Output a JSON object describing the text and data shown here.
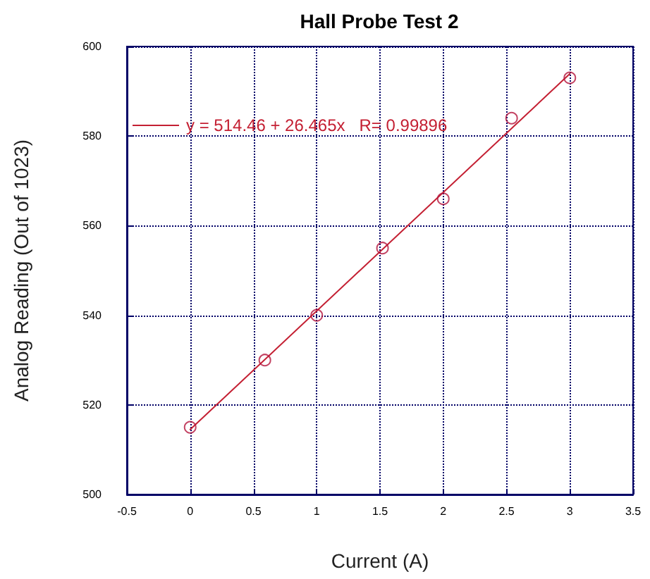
{
  "chart_data": {
    "type": "scatter",
    "title": "Hall Probe Test 2",
    "xlabel": "Current (A)",
    "ylabel": "Analog Reading (Out of 1023)",
    "xlim": [
      -0.5,
      3.5
    ],
    "xticks": [
      -0.5,
      0,
      0.5,
      1,
      1.5,
      2,
      2.5,
      3,
      3.5
    ],
    "ylim": [
      500,
      600
    ],
    "yticks": [
      500,
      520,
      540,
      560,
      580,
      600
    ],
    "grid": true,
    "legend": "top left",
    "series": [
      {
        "color": "#b4143c",
        "marker": "circle",
        "x": [
          0,
          0.59,
          1,
          1.52,
          2,
          2.54,
          3
        ],
        "values": [
          515,
          530,
          540,
          555,
          566,
          584,
          593
        ]
      },
      {
        "type": "line",
        "name": "y = 514.46 + 26.465x   R= 0.99896",
        "color": "#c42033",
        "marker": "none",
        "line_style": "solid",
        "x": [
          0,
          3
        ],
        "values": [
          514.5,
          593.9
        ]
      }
    ]
  }
}
